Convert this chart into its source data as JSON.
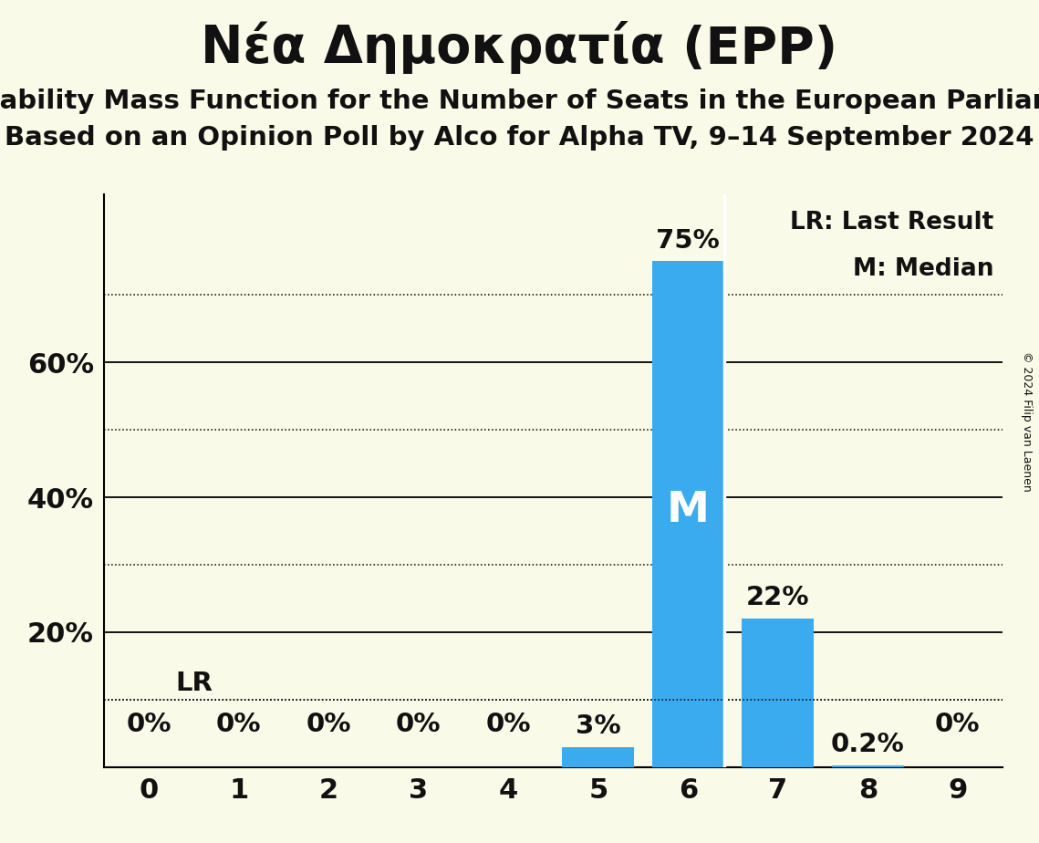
{
  "title": "Νέα Δημοκρατία (EPP)",
  "subtitle1": "Probability Mass Function for the Number of Seats in the European Parliament",
  "subtitle2": "Based on an Opinion Poll by Alco for Alpha TV, 9–14 September 2024",
  "copyright": "© 2024 Filip van Laenen",
  "seats": [
    0,
    1,
    2,
    3,
    4,
    5,
    6,
    7,
    8,
    9
  ],
  "probabilities": [
    0.0,
    0.0,
    0.0,
    0.0,
    0.0,
    3.0,
    75.0,
    22.0,
    0.2,
    0.0
  ],
  "bar_color": "#3aabef",
  "background_color": "#fafae8",
  "text_color": "#111111",
  "lr_value": 10.0,
  "lr_seat": 6,
  "median_seat": 6,
  "legend_lr": "LR: Last Result",
  "legend_m": "M: Median",
  "ylim": [
    0,
    85
  ],
  "ytick_positions": [
    0,
    10,
    20,
    30,
    40,
    50,
    60,
    70,
    80
  ],
  "ytick_labels_show": [
    20,
    40,
    60
  ],
  "solid_hlines": [
    20,
    40,
    60
  ],
  "dotted_hlines": [
    10,
    30,
    50,
    70
  ],
  "bar_label_fontsize": 21,
  "title_fontsize": 40,
  "subtitle_fontsize": 21,
  "axis_tick_fontsize": 22,
  "median_fontsize": 34,
  "legend_fontsize": 19
}
